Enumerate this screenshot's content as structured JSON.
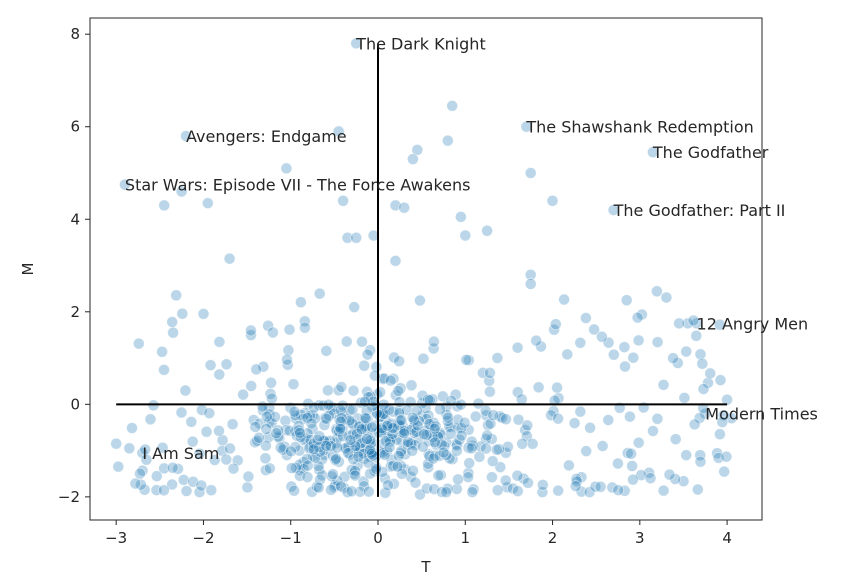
{
  "chart_data": {
    "type": "scatter",
    "xlabel": "T",
    "ylabel": "M",
    "xlim": [
      -3.3,
      4.4
    ],
    "ylim": [
      -2.5,
      8.35
    ],
    "xticks": [
      -3,
      -2,
      -1,
      0,
      1,
      2,
      3,
      4
    ],
    "yticks": [
      -2,
      0,
      2,
      4,
      6,
      8
    ],
    "grid": false,
    "point_color": "#1f77b4",
    "point_opacity": 0.3,
    "reference_lines": {
      "x": 0,
      "y": 0,
      "x_extent": [
        -3,
        4
      ],
      "y_extent": [
        -2,
        7.8
      ],
      "color": "#000000"
    },
    "annotations": [
      {
        "text": "The Dark Knight",
        "x": -0.25,
        "y": 7.8
      },
      {
        "text": "The Shawshank Redemption",
        "x": 1.7,
        "y": 6.0
      },
      {
        "text": "Avengers: Endgame",
        "x": -2.2,
        "y": 5.8
      },
      {
        "text": "The Godfather",
        "x": 3.15,
        "y": 5.45
      },
      {
        "text": "Star Wars: Episode VII - The Force Awakens",
        "x": -2.9,
        "y": 4.75
      },
      {
        "text": "The Godfather: Part II",
        "x": 2.7,
        "y": 4.2
      },
      {
        "text": "12 Angry Men",
        "x": 3.65,
        "y": 1.75
      },
      {
        "text": "Modern Times",
        "x": 3.75,
        "y": -0.2
      },
      {
        "text": "I Am Sam",
        "x": -2.7,
        "y": -1.05
      }
    ],
    "notable_points": [
      [
        -0.25,
        7.8
      ],
      [
        1.7,
        6.0
      ],
      [
        -2.2,
        5.8
      ],
      [
        3.15,
        5.45
      ],
      [
        -2.9,
        4.75
      ],
      [
        2.7,
        4.2
      ],
      [
        3.65,
        1.75
      ],
      [
        3.75,
        -0.2
      ],
      [
        -2.7,
        -1.05
      ],
      [
        0.85,
        6.45
      ],
      [
        0.8,
        5.7
      ],
      [
        0.45,
        5.5
      ],
      [
        0.4,
        5.3
      ],
      [
        -0.45,
        5.9
      ],
      [
        -1.05,
        5.1
      ],
      [
        1.75,
        5.0
      ],
      [
        2.0,
        4.4
      ],
      [
        0.2,
        4.3
      ],
      [
        0.3,
        4.25
      ],
      [
        -0.4,
        4.4
      ],
      [
        -2.25,
        4.6
      ],
      [
        -2.45,
        4.3
      ],
      [
        -1.95,
        4.35
      ],
      [
        0.95,
        4.05
      ],
      [
        1.0,
        3.65
      ],
      [
        1.25,
        3.75
      ],
      [
        -0.35,
        3.6
      ],
      [
        -0.25,
        3.6
      ],
      [
        -0.05,
        3.65
      ],
      [
        -1.7,
        3.15
      ],
      [
        0.2,
        3.1
      ],
      [
        1.75,
        2.8
      ],
      [
        1.75,
        2.6
      ],
      [
        2.85,
        2.25
      ],
      [
        3.55,
        1.75
      ],
      [
        3.45,
        1.75
      ],
      [
        4.0,
        0.1
      ],
      [
        4.05,
        -0.3
      ],
      [
        -3.0,
        -0.85
      ],
      [
        -2.85,
        -0.95
      ]
    ],
    "cluster_seed": 20240517
  }
}
